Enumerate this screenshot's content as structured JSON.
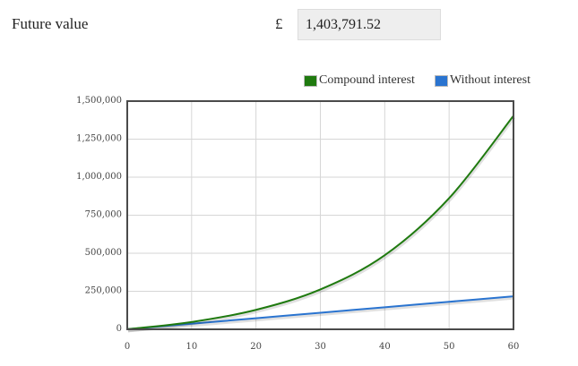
{
  "header": {
    "label": "Future value",
    "currency_symbol": "£",
    "value": "1,403,791.52"
  },
  "legend": [
    {
      "label": "Compound interest",
      "color": "#1f7a0f"
    },
    {
      "label": "Without interest",
      "color": "#2a74d0"
    }
  ],
  "chart_data": {
    "type": "line",
    "title": "",
    "xlabel": "",
    "ylabel": "",
    "xlim": [
      0,
      60
    ],
    "ylim": [
      0,
      1500000
    ],
    "x_ticks": [
      "0",
      "10",
      "20",
      "30",
      "40",
      "50",
      "60"
    ],
    "y_ticks": [
      "0",
      "250,000",
      "500,000",
      "750,000",
      "1,000,000",
      "1,250,000",
      "1,500,000"
    ],
    "grid": true,
    "legend_position": "top-right",
    "x": [
      0,
      10,
      20,
      30,
      40,
      50,
      60
    ],
    "series": [
      {
        "name": "Compound interest",
        "color": "#1f7a0f",
        "values": [
          1000,
          48000,
          128000,
          262000,
          487000,
          862000,
          1403792
        ]
      },
      {
        "name": "Without interest",
        "color": "#2a74d0",
        "values": [
          1000,
          37000,
          73000,
          109000,
          145000,
          181000,
          217000
        ]
      }
    ]
  }
}
